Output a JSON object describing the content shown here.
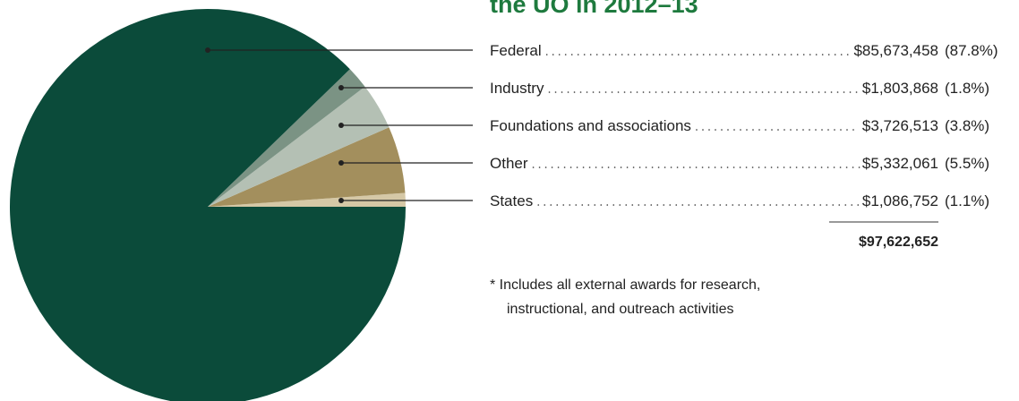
{
  "chart_data": {
    "type": "pie",
    "title": "the UO in 2012–13",
    "categories": [
      "Federal",
      "Industry",
      "Foundations and associations",
      "Other",
      "States"
    ],
    "values": [
      85673458,
      1803868,
      3726513,
      5332061,
      1086752
    ],
    "value_labels": [
      "$85,673,458",
      "$1,803,868",
      "$3,726,513",
      "$5,332,061",
      "$1,086,752"
    ],
    "percents": [
      87.8,
      1.8,
      3.8,
      5.5,
      1.1
    ],
    "percent_labels": [
      "(87.8%)",
      "(1.8%)",
      "(3.8%)",
      "(5.5%)",
      "(1.1%)"
    ],
    "colors": [
      "#0b4b3a",
      "#7b9384",
      "#b4c0b4",
      "#a38f5d",
      "#d5c8a6"
    ],
    "total": 97622652,
    "total_label": "$97,622,652",
    "footnote": [
      "*  Includes all external awards for research,",
      "instructional, and outreach activities"
    ]
  }
}
